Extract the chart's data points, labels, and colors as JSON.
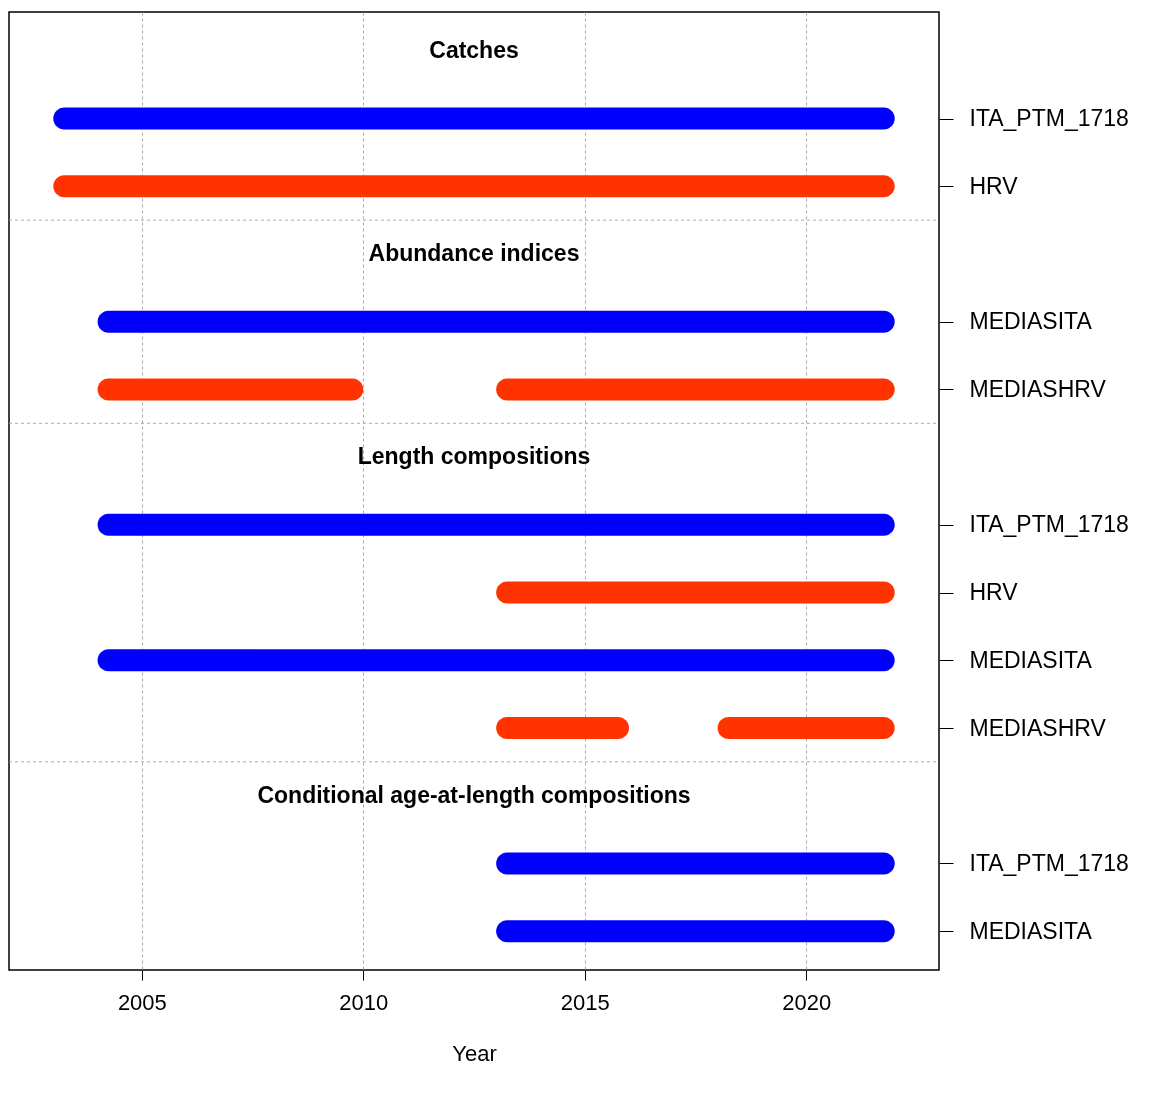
{
  "chart_data": {
    "type": "bar",
    "orientation": "horizontal",
    "xlabel": "Year",
    "categories": [
      null,
      "ITA_PTM_1718",
      "HRV",
      null,
      "MEDIASITA",
      "MEDIASHRV",
      null,
      "ITA_PTM_1718",
      "HRV",
      "MEDIASITA",
      "MEDIASHRV",
      null,
      "ITA_PTM_1718",
      "MEDIASITA"
    ],
    "series": [
      {
        "base": [
          null,
          2003,
          2003,
          null,
          2004,
          2004,
          null,
          2004,
          2013,
          2004,
          2013,
          null,
          2013,
          2013
        ],
        "values": [
          null,
          19,
          19,
          null,
          18,
          6,
          null,
          18,
          9,
          18,
          3,
          null,
          9,
          9
        ],
        "colors": [
          null,
          "#0000ff",
          "#ff3300",
          null,
          "#0000ff",
          "#ff3300",
          null,
          "#0000ff",
          "#ff3300",
          "#0000ff",
          "#ff3300",
          null,
          "#0000ff",
          "#0000ff"
        ]
      },
      {
        "base": [
          null,
          null,
          null,
          null,
          null,
          2013,
          null,
          null,
          null,
          null,
          2018,
          null,
          null,
          null
        ],
        "values": [
          null,
          null,
          null,
          null,
          null,
          9,
          null,
          null,
          null,
          null,
          4,
          null,
          null,
          null
        ],
        "colors": [
          null,
          null,
          null,
          null,
          null,
          "#ff3300",
          null,
          null,
          null,
          null,
          "#ff3300",
          null,
          null,
          null
        ]
      }
    ],
    "annotations": [
      "Catches",
      "Abundance indices",
      "Length compositions",
      "Conditional age-at-length compositions"
    ],
    "xlim": [
      2002,
      2023
    ],
    "xticks": [
      2005,
      2010,
      2015,
      2020
    ],
    "grid": true
  }
}
